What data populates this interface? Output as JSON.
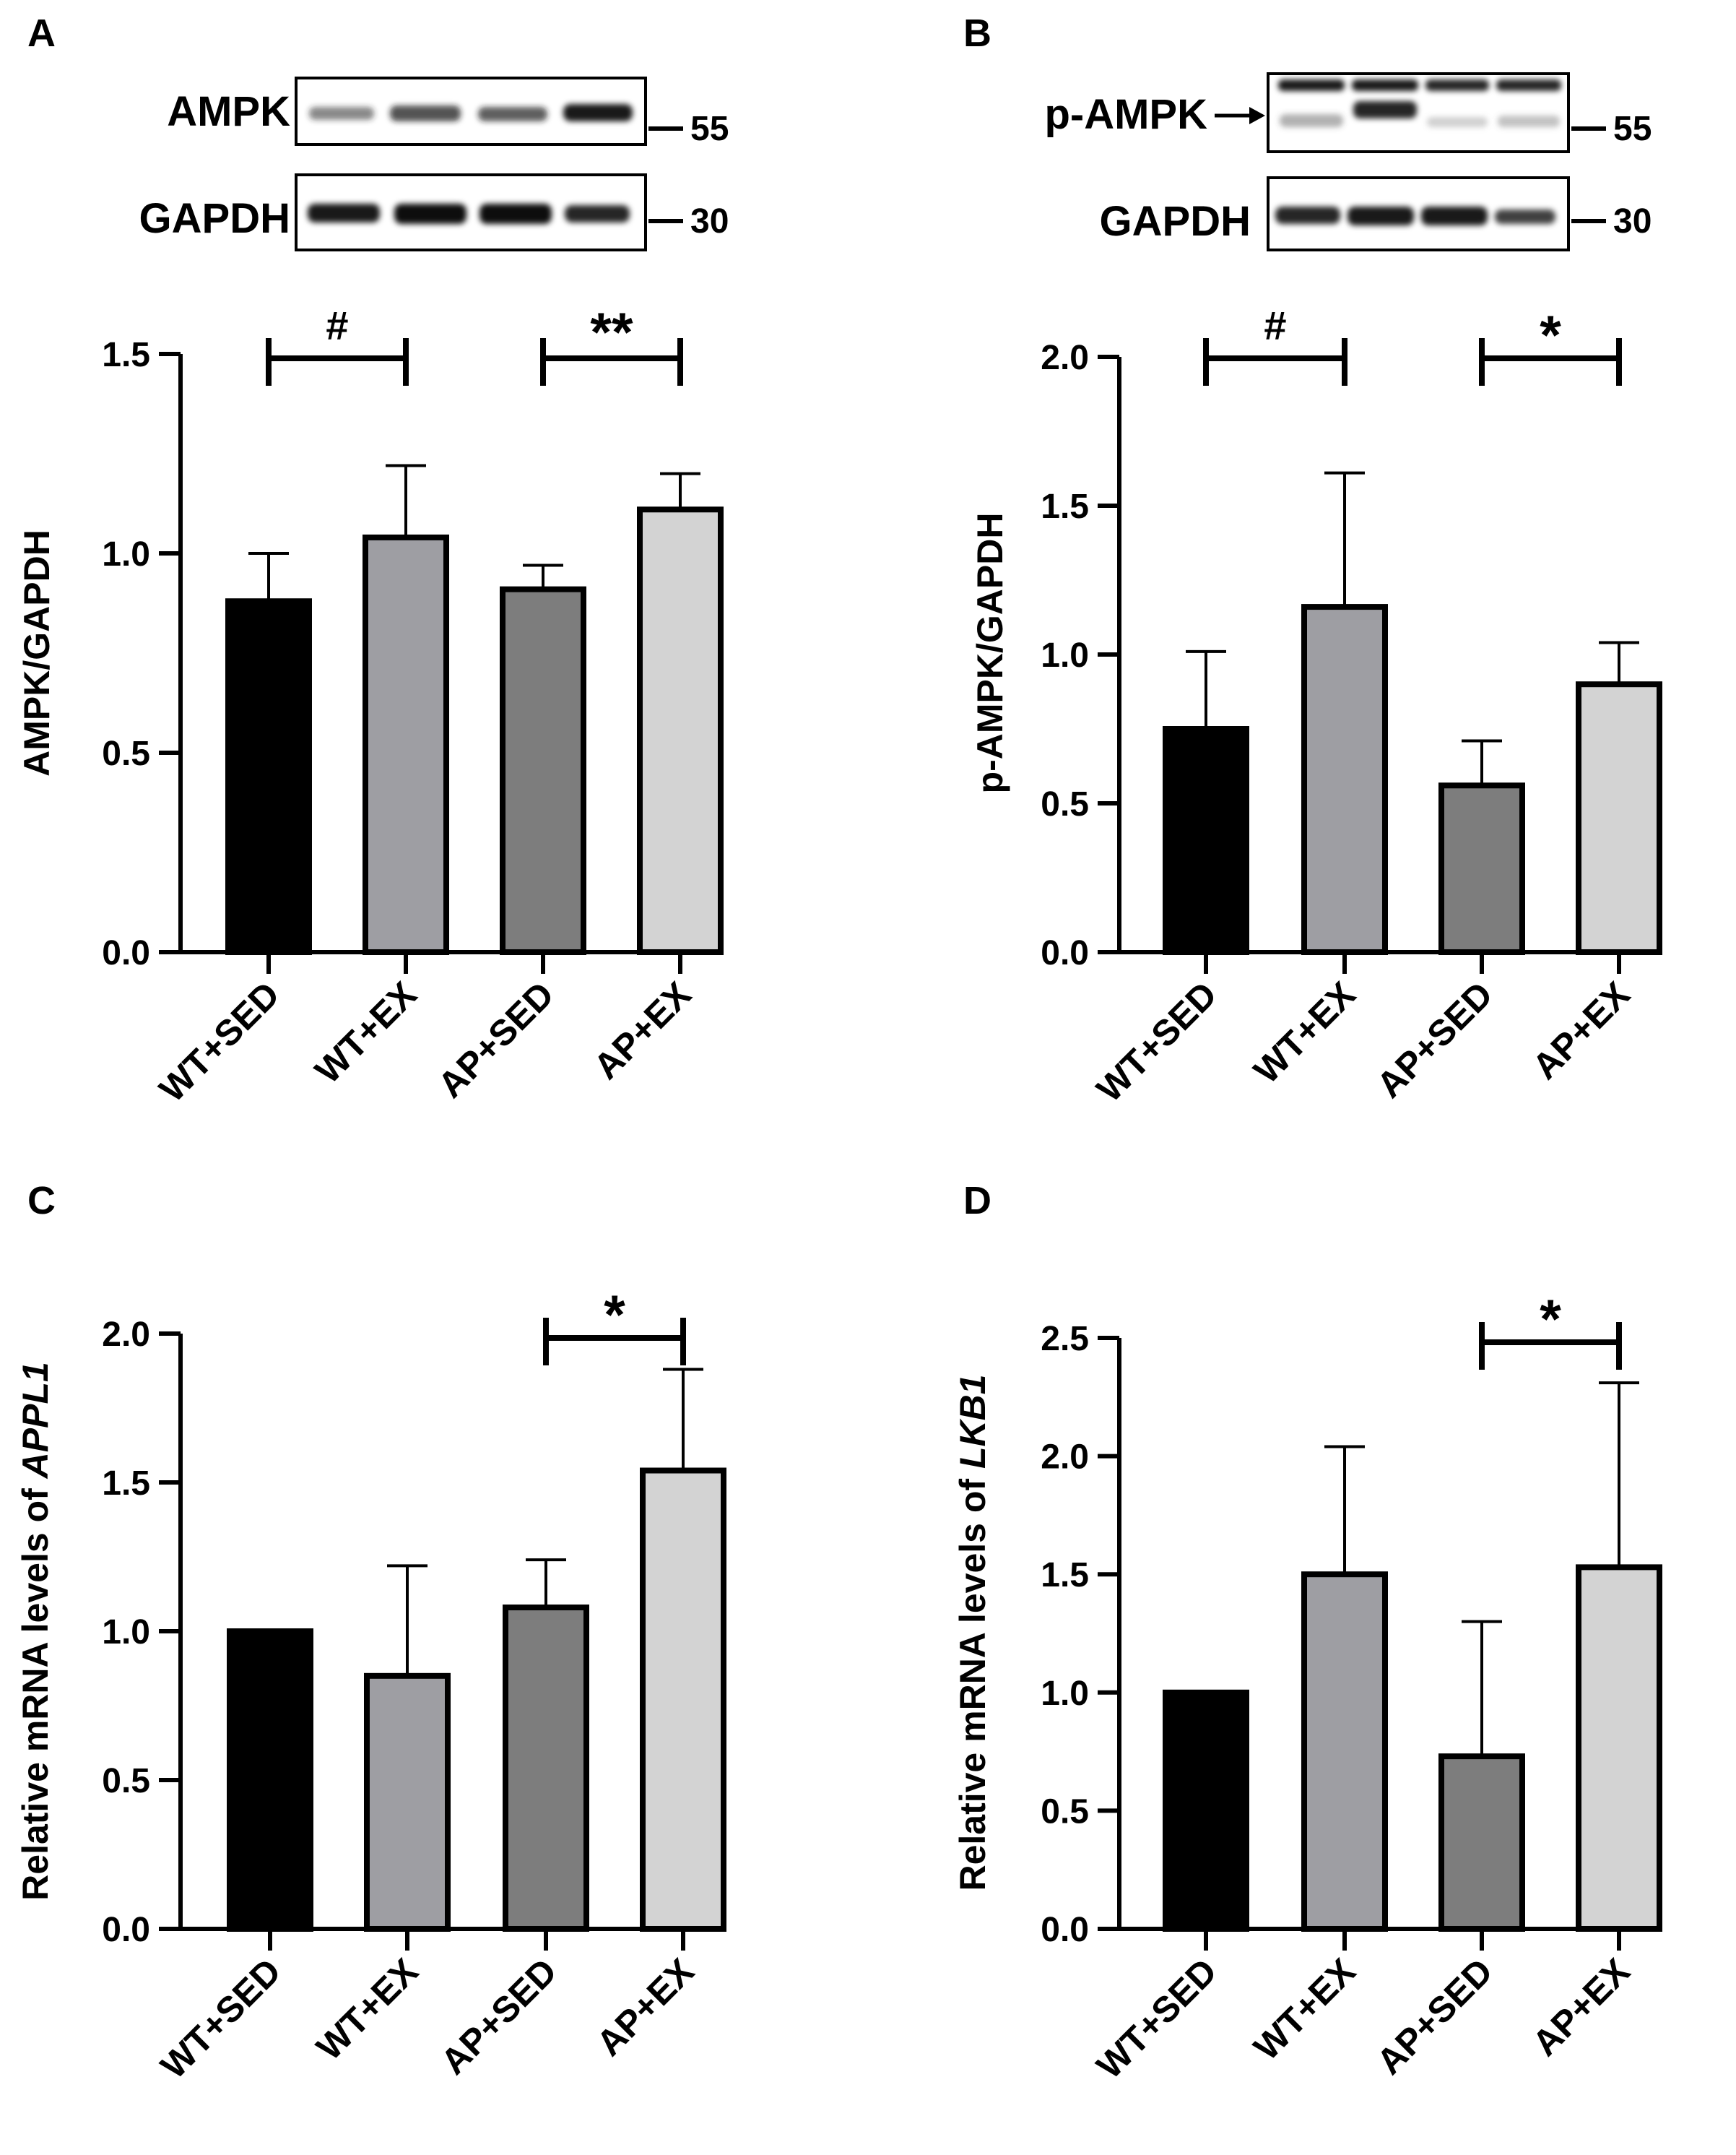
{
  "colors": {
    "wt_sed": "#000000",
    "wt_ex": "#9e9ea3",
    "ap_sed": "#7d7d7d",
    "ap_ex": "#d3d3d3",
    "outline": "#000000"
  },
  "blots": {
    "A": {
      "rows": [
        {
          "label": "AMPK",
          "marker": "55"
        },
        {
          "label": "GAPDH",
          "marker": "30"
        }
      ]
    },
    "B": {
      "rows": [
        {
          "label": "p-AMPK",
          "marker": "55"
        },
        {
          "label": "GAPDH",
          "marker": "30"
        }
      ]
    }
  },
  "chart_data": [
    {
      "panel": "A",
      "type": "bar",
      "categories": [
        "WT+SED",
        "WT+EX",
        "AP+SED",
        "AP+EX"
      ],
      "values": [
        0.88,
        1.04,
        0.91,
        1.11
      ],
      "errors": [
        0.12,
        0.18,
        0.06,
        0.09
      ],
      "ylabel": "AMPK/GAPDH",
      "ylim": [
        0,
        1.5
      ],
      "yticks": [
        "0.0",
        "0.5",
        "1.0",
        "1.5"
      ],
      "annotations": [
        {
          "from": 0,
          "to": 1,
          "text": "#"
        },
        {
          "from": 2,
          "to": 3,
          "text": "**"
        }
      ]
    },
    {
      "panel": "B",
      "type": "bar",
      "categories": [
        "WT+SED",
        "WT+EX",
        "AP+SED",
        "AP+EX"
      ],
      "values": [
        0.75,
        1.16,
        0.56,
        0.9
      ],
      "errors": [
        0.26,
        0.45,
        0.15,
        0.14
      ],
      "ylabel": "p-AMPK/GAPDH",
      "ylim": [
        0,
        2.0
      ],
      "yticks": [
        "0.0",
        "0.5",
        "1.0",
        "1.5",
        "2.0"
      ],
      "annotations": [
        {
          "from": 0,
          "to": 1,
          "text": "#"
        },
        {
          "from": 2,
          "to": 3,
          "text": "*"
        }
      ]
    },
    {
      "panel": "C",
      "type": "bar",
      "categories": [
        "WT+SED",
        "WT+EX",
        "AP+SED",
        "AP+EX"
      ],
      "values": [
        1.0,
        0.85,
        1.08,
        1.54
      ],
      "errors": [
        0.0,
        0.37,
        0.16,
        0.34
      ],
      "ylabel": "Relative mRNA levels of ",
      "ylabel_gene": "APPL1",
      "ylim": [
        0,
        2.0
      ],
      "yticks": [
        "0.0",
        "0.5",
        "1.0",
        "1.5",
        "2.0"
      ],
      "annotations": [
        {
          "from": 2,
          "to": 3,
          "text": "*"
        }
      ]
    },
    {
      "panel": "D",
      "type": "bar",
      "categories": [
        "WT+SED",
        "WT+EX",
        "AP+SED",
        "AP+EX"
      ],
      "values": [
        1.0,
        1.5,
        0.73,
        1.53
      ],
      "errors": [
        0.0,
        0.54,
        0.57,
        0.78
      ],
      "ylabel": "Relative mRNA levels of ",
      "ylabel_gene": "LKB1",
      "ylim": [
        0,
        2.5
      ],
      "yticks": [
        "0.0",
        "0.5",
        "1.0",
        "1.5",
        "2.0",
        "2.5"
      ],
      "annotations": [
        {
          "from": 2,
          "to": 3,
          "text": "*"
        }
      ]
    }
  ]
}
